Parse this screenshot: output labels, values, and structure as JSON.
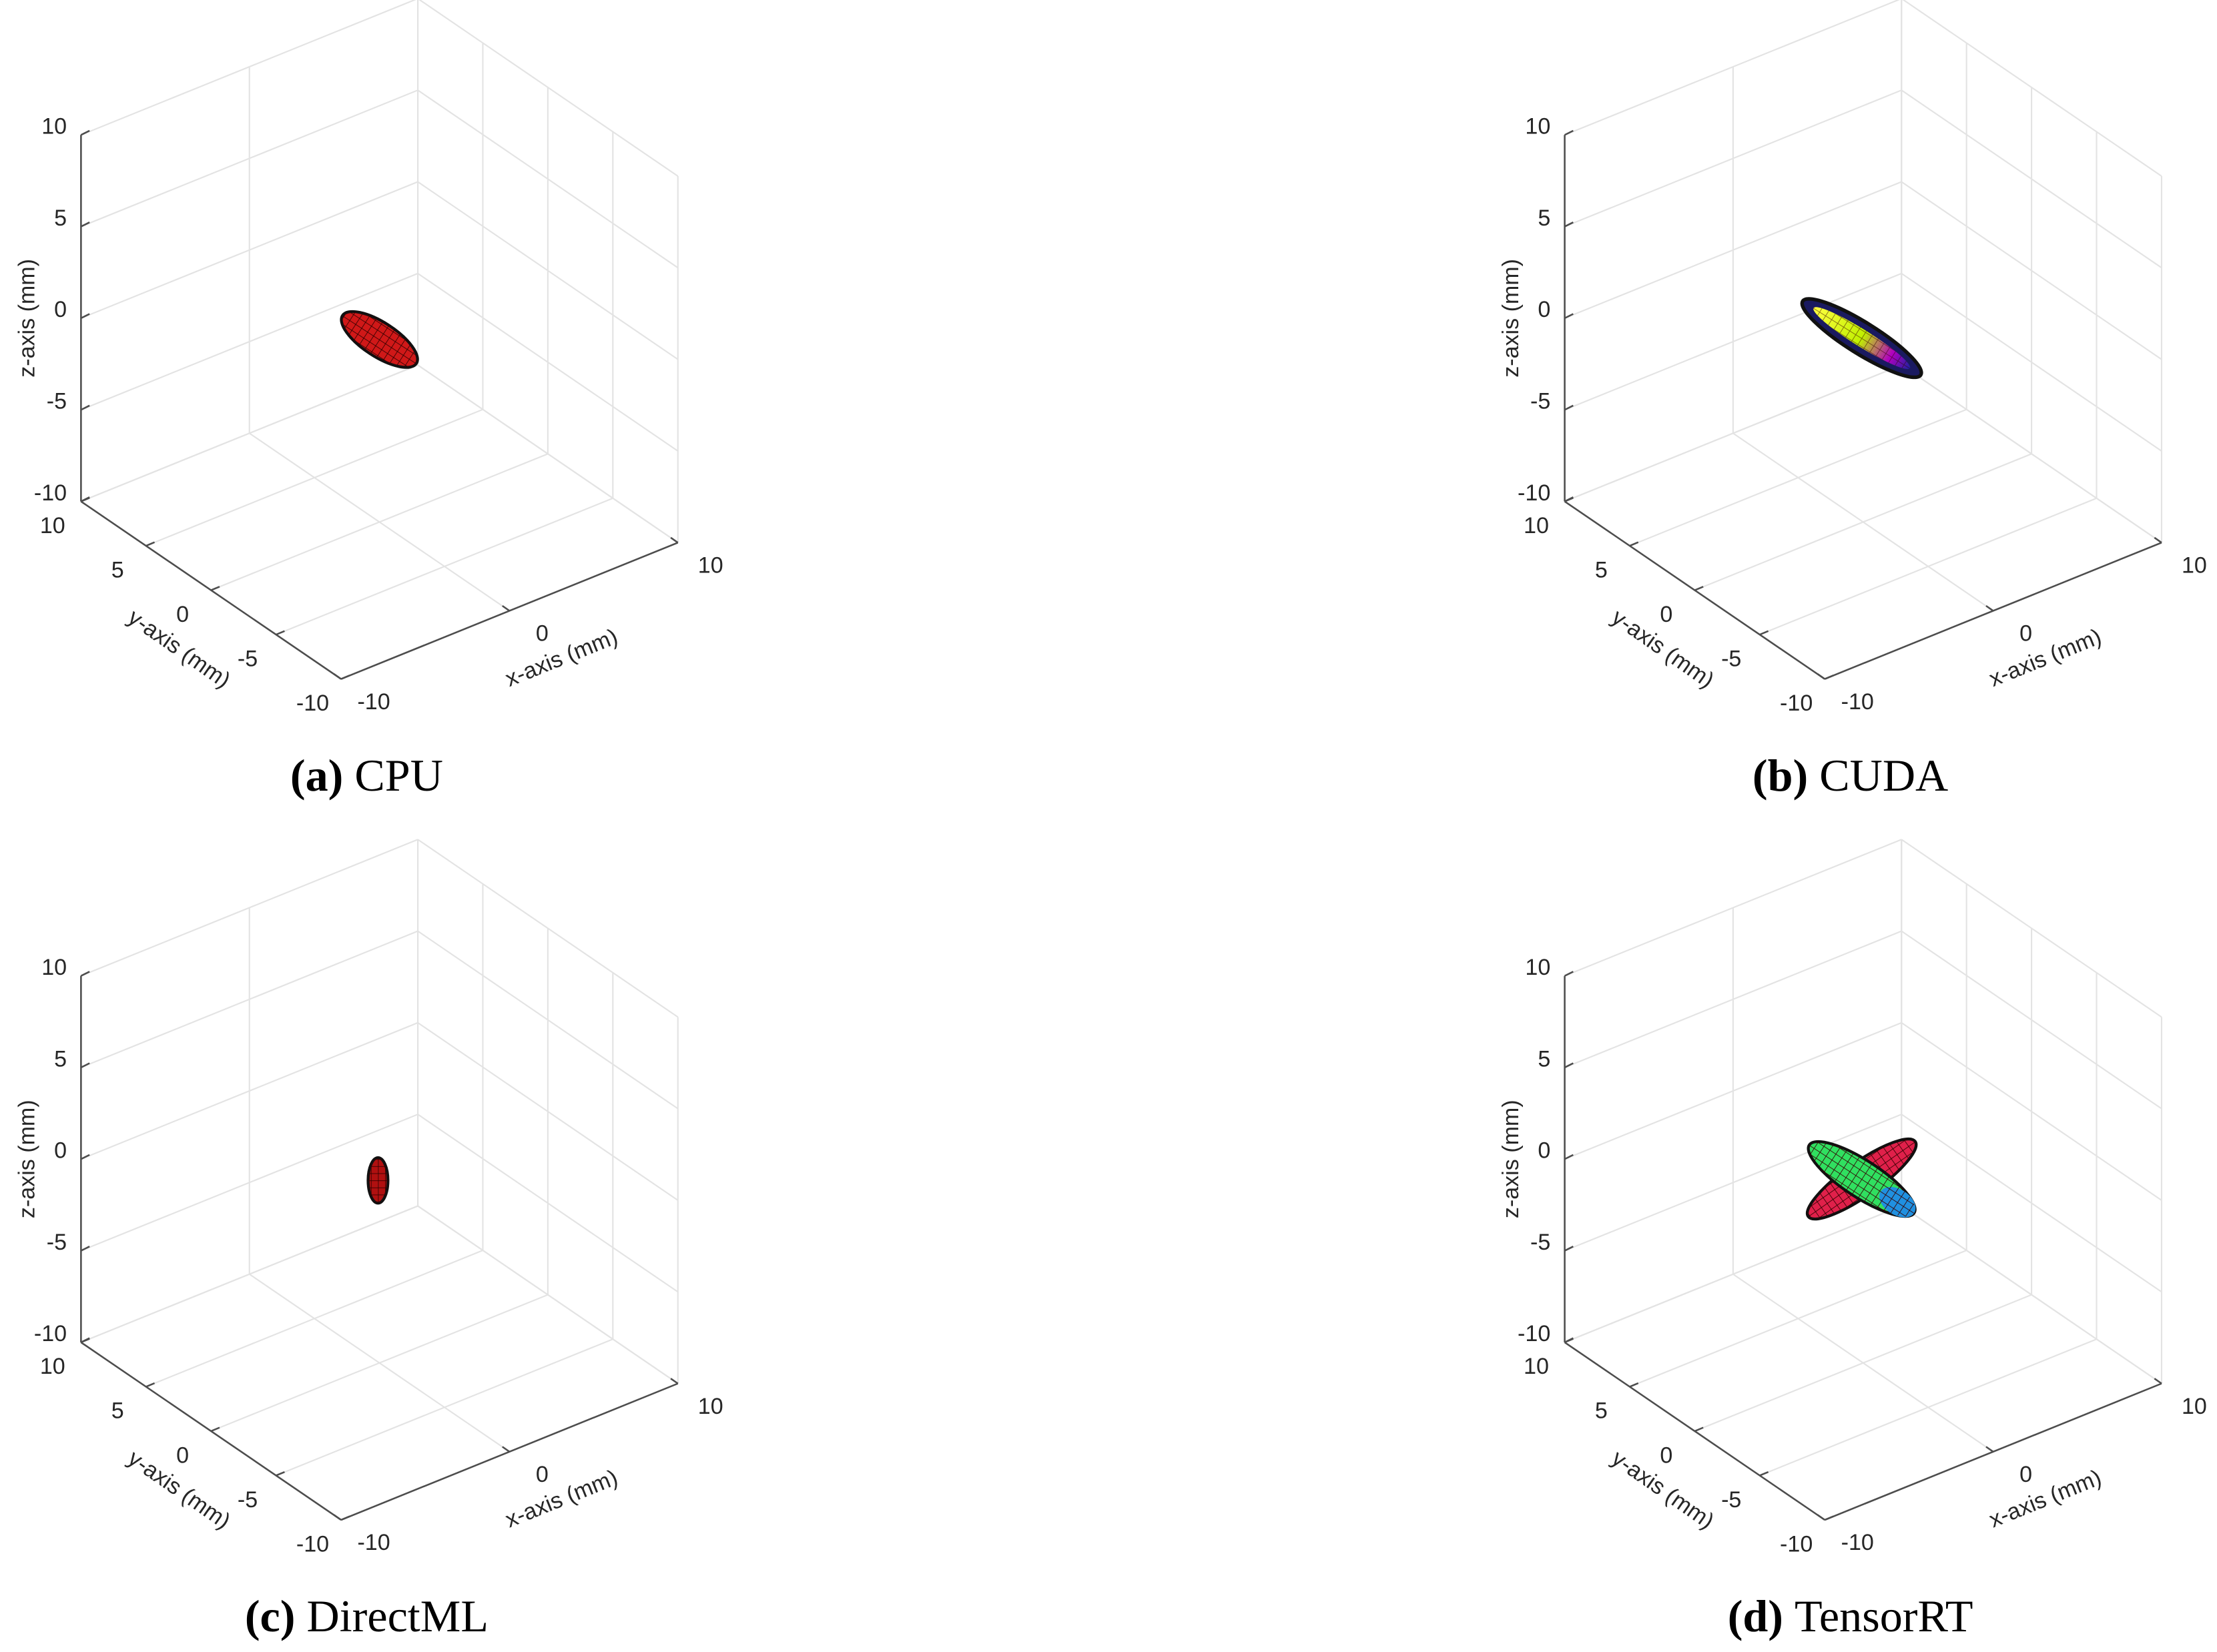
{
  "chart_data": [
    {
      "type": "surface3d",
      "panel_label": "(a)",
      "caption": "CPU",
      "xlabel": "x-axis (mm)",
      "ylabel": "y-axis (mm)",
      "zlabel": "z-axis (mm)",
      "xlim": [
        -10,
        10
      ],
      "ylim": [
        -10,
        10
      ],
      "zlim": [
        -10,
        10
      ],
      "xticks": [
        -10,
        0,
        10
      ],
      "yticks": [
        -10,
        -5,
        0,
        5,
        10
      ],
      "zticks": [
        -10,
        -5,
        0,
        5,
        10
      ],
      "grid": true
    },
    {
      "type": "surface3d",
      "panel_label": "(b)",
      "caption": "CUDA",
      "xlabel": "x-axis (mm)",
      "ylabel": "y-axis (mm)",
      "zlabel": "z-axis (mm)",
      "xlim": [
        -10,
        10
      ],
      "ylim": [
        -10,
        10
      ],
      "zlim": [
        -10,
        10
      ],
      "xticks": [
        -10,
        0,
        10
      ],
      "yticks": [
        -10,
        -5,
        0,
        5,
        10
      ],
      "zticks": [
        -10,
        -5,
        0,
        5,
        10
      ],
      "grid": true
    },
    {
      "type": "surface3d",
      "panel_label": "(c)",
      "caption": "DirectML",
      "xlabel": "x-axis (mm)",
      "ylabel": "y-axis (mm)",
      "zlabel": "z-axis (mm)",
      "xlim": [
        -10,
        10
      ],
      "ylim": [
        -10,
        10
      ],
      "zlim": [
        -10,
        10
      ],
      "xticks": [
        -10,
        0,
        10
      ],
      "yticks": [
        -10,
        -5,
        0,
        5,
        10
      ],
      "zticks": [
        -10,
        -5,
        0,
        5,
        10
      ],
      "grid": true
    },
    {
      "type": "surface3d",
      "panel_label": "(d)",
      "caption": "TensorRT",
      "xlabel": "x-axis (mm)",
      "ylabel": "y-axis (mm)",
      "zlabel": "z-axis (mm)",
      "xlim": [
        -10,
        10
      ],
      "ylim": [
        -10,
        10
      ],
      "zlim": [
        -10,
        10
      ],
      "xticks": [
        -10,
        0,
        10
      ],
      "yticks": [
        -10,
        -5,
        0,
        5,
        10
      ],
      "zticks": [
        -10,
        -5,
        0,
        5,
        10
      ],
      "grid": true
    }
  ]
}
